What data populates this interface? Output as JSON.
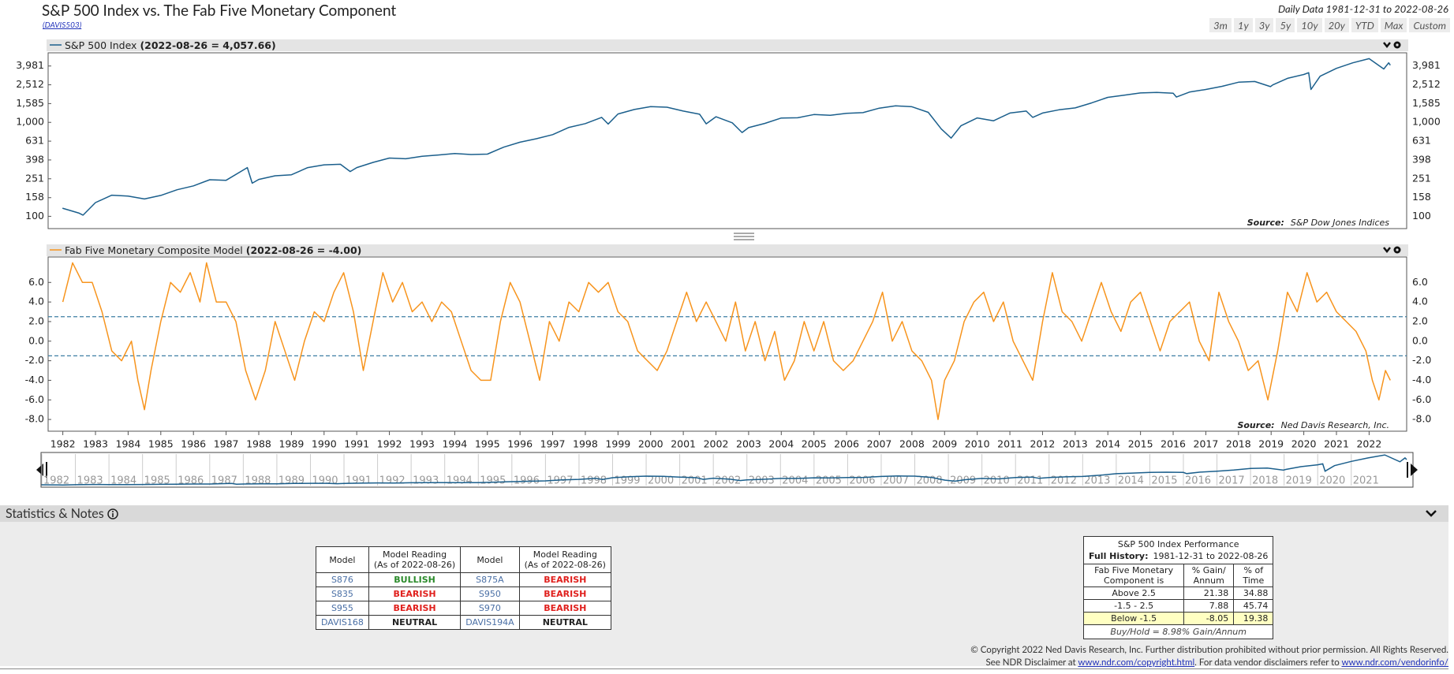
{
  "header": {
    "title": "S&P 500 Index vs. The Fab Five Monetary Component",
    "code": "(DAVIS503)",
    "range_note": "Daily Data 1981-12-31 to 2022-08-26",
    "range_buttons": [
      "3m",
      "1y",
      "3y",
      "5y",
      "10y",
      "20y",
      "YTD",
      "Max",
      "Custom"
    ]
  },
  "chart_data": [
    {
      "type": "line",
      "log_scale": true,
      "legend_value": "(2022-08-26 = 4,057.66)",
      "source_label": "Source:",
      "source": "S&P Dow Jones Indices",
      "xlim": [
        1981.55,
        2023.15
      ],
      "ylim": [
        74,
        5500
      ],
      "yticks": [
        100,
        158,
        251,
        398,
        631,
        {
          "value": 1000,
          "label": "1,000"
        },
        {
          "value": 1585,
          "label": "1,585"
        },
        {
          "value": 2512,
          "label": "2,512"
        },
        {
          "value": 3981,
          "label": "3,981"
        }
      ],
      "x": [
        1981.99,
        1982.5,
        1982.62,
        1983,
        1983.5,
        1984,
        1984.5,
        1985,
        1985.5,
        1986,
        1986.5,
        1987,
        1987.65,
        1987.8,
        1988,
        1988.5,
        1989,
        1989.5,
        1990,
        1990.5,
        1990.8,
        1991,
        1991.5,
        1992,
        1992.5,
        1993,
        1993.5,
        1994,
        1994.5,
        1995,
        1995.5,
        1996,
        1996.5,
        1997,
        1997.5,
        1998,
        1998.5,
        1998.7,
        1999,
        1999.5,
        2000,
        2000.5,
        2001,
        2001.5,
        2001.7,
        2002,
        2002.5,
        2002.8,
        2003,
        2003.5,
        2004,
        2004.5,
        2005,
        2005.5,
        2006,
        2006.5,
        2007,
        2007.5,
        2008,
        2008.5,
        2008.9,
        2009.2,
        2009.5,
        2010,
        2010.5,
        2011,
        2011.5,
        2011.7,
        2012,
        2012.5,
        2013,
        2013.5,
        2014,
        2014.5,
        2015,
        2015.5,
        2016,
        2016.1,
        2016.5,
        2017,
        2017.5,
        2018,
        2018.5,
        2018.98,
        2019.05,
        2019.5,
        2020,
        2020.15,
        2020.22,
        2020.5,
        2021,
        2021.5,
        2022,
        2022.45,
        2022.6,
        2022.65
      ],
      "series": [
        {
          "name": "S&P 500 Index",
          "color": "#1b5f8c",
          "values": [
            122,
            108,
            103,
            140,
            168,
            164,
            153,
            167,
            192,
            211,
            245,
            242,
            330,
            225,
            247,
            270,
            277,
            330,
            353,
            358,
            300,
            330,
            375,
            417,
            410,
            435,
            450,
            466,
            455,
            459,
            545,
            615,
            670,
            740,
            885,
            970,
            1130,
            960,
            1229,
            1370,
            1469,
            1450,
            1320,
            1220,
            965,
            1148,
            990,
            780,
            880,
            975,
            1112,
            1120,
            1212,
            1190,
            1248,
            1270,
            1418,
            1500,
            1468,
            1280,
            850,
            680,
            920,
            1115,
            1040,
            1258,
            1320,
            1130,
            1258,
            1360,
            1426,
            1610,
            1848,
            1950,
            2058,
            2080,
            2044,
            1860,
            2100,
            2239,
            2420,
            2673,
            2720,
            2400,
            2506,
            2940,
            3230,
            3380,
            2240,
            3100,
            3756,
            4300,
            4766,
            3700,
            4300,
            4057.66
          ]
        }
      ]
    },
    {
      "type": "line",
      "legend_value": "(2022-08-26 = -4.00)",
      "source_label": "Source:",
      "source": "Ned Davis Research, Inc.",
      "xlim": [
        1981.55,
        2023.15
      ],
      "ylim": [
        -9.2,
        8.6
      ],
      "reference_lines": [
        2.5,
        -1.5
      ],
      "reference_color": "#3d7fa3",
      "yticks": [
        {
          "value": 6,
          "label": "6.0"
        },
        {
          "value": 4,
          "label": "4.0"
        },
        {
          "value": 2,
          "label": "2.0"
        },
        {
          "value": 0,
          "label": "0.0"
        },
        {
          "value": -2,
          "label": "-2.0"
        },
        {
          "value": -4,
          "label": "-4.0"
        },
        {
          "value": -6,
          "label": "-6.0"
        },
        {
          "value": -8,
          "label": "-8.0"
        }
      ],
      "xticks": [
        1982,
        1983,
        1984,
        1985,
        1986,
        1987,
        1988,
        1989,
        1990,
        1991,
        1992,
        1993,
        1994,
        1995,
        1996,
        1997,
        1998,
        1999,
        2000,
        2001,
        2002,
        2003,
        2004,
        2005,
        2006,
        2007,
        2008,
        2009,
        2010,
        2011,
        2012,
        2013,
        2014,
        2015,
        2016,
        2017,
        2018,
        2019,
        2020,
        2021,
        2022
      ],
      "x": [
        1982.0,
        1982.3,
        1982.6,
        1982.9,
        1983.2,
        1983.5,
        1983.8,
        1984.1,
        1984.3,
        1984.5,
        1984.7,
        1985.0,
        1985.3,
        1985.6,
        1985.9,
        1986.2,
        1986.4,
        1986.7,
        1987.0,
        1987.3,
        1987.6,
        1987.9,
        1988.2,
        1988.5,
        1988.8,
        1989.1,
        1989.4,
        1989.7,
        1990.0,
        1990.3,
        1990.6,
        1990.9,
        1991.2,
        1991.5,
        1991.8,
        1992.1,
        1992.4,
        1992.7,
        1993.0,
        1993.3,
        1993.6,
        1993.9,
        1994.2,
        1994.5,
        1994.8,
        1995.1,
        1995.4,
        1995.7,
        1996.0,
        1996.3,
        1996.6,
        1996.9,
        1997.2,
        1997.5,
        1997.8,
        1998.1,
        1998.4,
        1998.7,
        1999.0,
        1999.3,
        1999.6,
        1999.9,
        2000.2,
        2000.5,
        2000.8,
        2001.1,
        2001.4,
        2001.7,
        2002.0,
        2002.3,
        2002.6,
        2002.9,
        2003.2,
        2003.5,
        2003.8,
        2004.1,
        2004.4,
        2004.7,
        2005.0,
        2005.3,
        2005.6,
        2005.9,
        2006.2,
        2006.5,
        2006.8,
        2007.1,
        2007.4,
        2007.7,
        2008.0,
        2008.3,
        2008.6,
        2008.8,
        2009.0,
        2009.3,
        2009.6,
        2009.9,
        2010.2,
        2010.5,
        2010.8,
        2011.1,
        2011.4,
        2011.7,
        2012.0,
        2012.3,
        2012.6,
        2012.9,
        2013.2,
        2013.5,
        2013.8,
        2014.1,
        2014.4,
        2014.7,
        2015.0,
        2015.3,
        2015.6,
        2015.9,
        2016.2,
        2016.5,
        2016.8,
        2017.1,
        2017.4,
        2017.7,
        2018.0,
        2018.3,
        2018.6,
        2018.9,
        2019.2,
        2019.5,
        2019.8,
        2020.1,
        2020.4,
        2020.7,
        2021.0,
        2021.3,
        2021.6,
        2021.9,
        2022.1,
        2022.3,
        2022.5,
        2022.65
      ],
      "series": [
        {
          "name": "Fab Five Monetary Composite Model",
          "color": "#f7941d",
          "values": [
            4,
            8,
            6,
            6,
            3,
            -1,
            -2,
            0,
            -4,
            -7,
            -3,
            2,
            6,
            5,
            7,
            4,
            8,
            4,
            4,
            2,
            -3,
            -6,
            -3,
            2,
            -1,
            -4,
            0,
            3,
            2,
            5,
            7,
            3,
            -3,
            2,
            7,
            4,
            6,
            3,
            4,
            2,
            4,
            3,
            0,
            -3,
            -4,
            -4,
            2,
            6,
            4,
            0,
            -4,
            2,
            0,
            4,
            3,
            6,
            5,
            6,
            3,
            2,
            -1,
            -2,
            -3,
            -1,
            2,
            5,
            2,
            4,
            2,
            0,
            4,
            -1,
            2,
            -2,
            1,
            -4,
            -2,
            2,
            -1,
            2,
            -2,
            -3,
            -2,
            0,
            2,
            5,
            0,
            2,
            -1,
            -2,
            -4,
            -8,
            -4,
            -2,
            2,
            4,
            5,
            2,
            4,
            0,
            -2,
            -4,
            2,
            7,
            3,
            2,
            0,
            3,
            6,
            3,
            1,
            4,
            5,
            2,
            -1,
            2,
            3,
            4,
            0,
            -2,
            5,
            2,
            0,
            -3,
            -2,
            -6,
            -1,
            5,
            3,
            7,
            4,
            5,
            3,
            2,
            1,
            -1,
            -4,
            -6,
            -3,
            -4
          ]
        }
      ]
    }
  ],
  "navigator": {
    "xlim": [
      1982,
      2022.65
    ],
    "ylim": [
      0,
      4900
    ],
    "xticks": [
      1982,
      1983,
      1984,
      1985,
      1986,
      1987,
      1988,
      1989,
      1990,
      1991,
      1992,
      1993,
      1994,
      1995,
      1996,
      1997,
      1998,
      1999,
      2000,
      2001,
      2002,
      2003,
      2004,
      2005,
      2006,
      2007,
      2008,
      2009,
      2010,
      2011,
      2012,
      2013,
      2014,
      2015,
      2016,
      2017,
      2018,
      2019,
      2020,
      2021
    ]
  },
  "notes_title": "Statistics & Notes",
  "reading_colors": {
    "BULLISH": "#2a8a2a",
    "BEARISH": "#e0201d",
    "NEUTRAL": "#222222"
  },
  "models_table": {
    "header": [
      [
        "Model"
      ],
      [
        "Model Reading",
        "(As of 2022-08-26)"
      ],
      [
        "Model"
      ],
      [
        "Model Reading",
        "(As of 2022-08-26)"
      ]
    ],
    "rows": [
      [
        "S876",
        "BULLISH",
        "S875A",
        "BEARISH"
      ],
      [
        "S835",
        "BEARISH",
        "S950",
        "BEARISH"
      ],
      [
        "S955",
        "BEARISH",
        "S970",
        "BEARISH"
      ],
      [
        "DAVIS168",
        "NEUTRAL",
        "DAVIS194A",
        "NEUTRAL"
      ]
    ]
  },
  "performance_table": {
    "title": "S&P 500 Index Performance",
    "history_label": "Full History:",
    "history": "1981-12-31 to 2022-08-26",
    "header": [
      [
        "Fab Five Monetary",
        "Component is"
      ],
      [
        "% Gain/",
        "Annum"
      ],
      [
        "% of",
        "Time"
      ]
    ],
    "rows": [
      [
        "Above 2.5",
        21.38,
        34.88
      ],
      [
        "-1.5 - 2.5",
        7.88,
        45.74
      ],
      [
        "Below -1.5",
        -8.05,
        19.38
      ]
    ],
    "highlight_row": 2,
    "footer": "Buy/Hold = 8.98% Gain/Annum"
  },
  "footer": {
    "copyright": "© Copyright 2022 Ned Davis Research, Inc. Further distribution prohibited without prior permission. All Rights Reserved.",
    "disclaimer_pre": "See NDR Disclaimer at ",
    "link1": "www.ndr.com/copyright.html",
    "disclaimer_mid": ". For data vendor disclaimers refer to ",
    "link2": "www.ndr.com/vendorinfo/"
  }
}
